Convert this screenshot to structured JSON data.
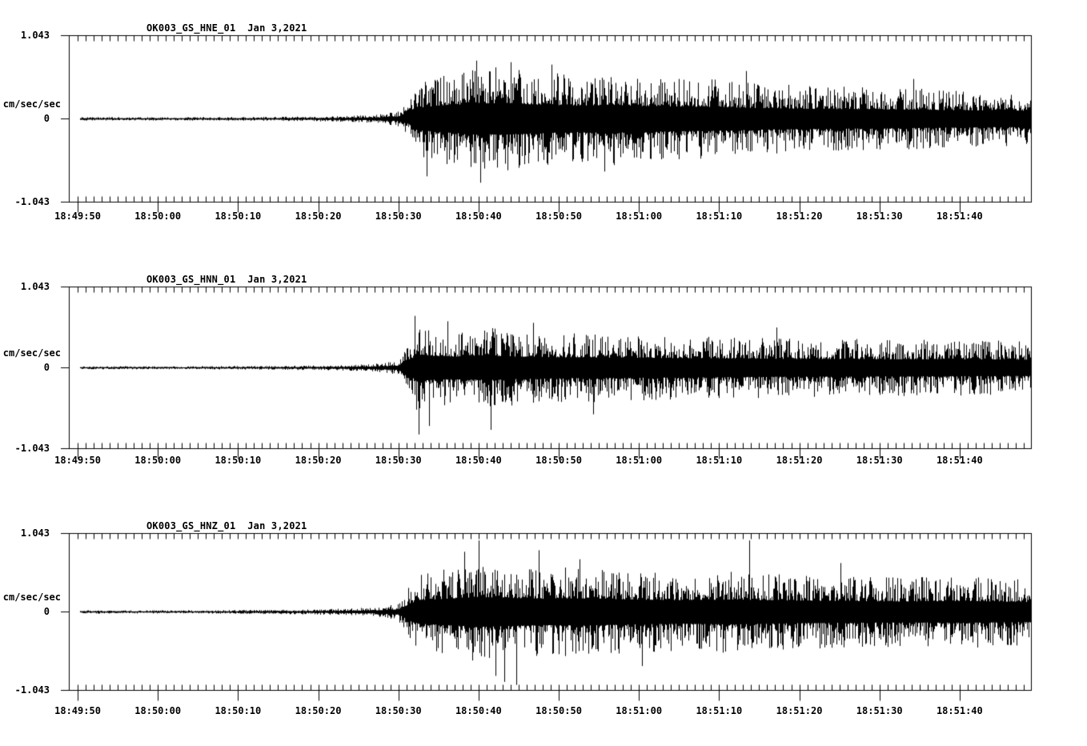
{
  "page": {
    "background": "#ffffff",
    "foreground": "#000000"
  },
  "chart_data": {
    "type": "line",
    "subtype": "seismogram-waveform",
    "station": "OK003",
    "network": "GS",
    "date": "Jan 3,2021",
    "grid": false,
    "x_axis": {
      "window_start": "18:49:49",
      "window_end": "18:51:49",
      "window_seconds": 120,
      "major_tick_interval_sec": 10,
      "minor_tick_interval_sec": 1,
      "tick_labels": [
        "18:49:50",
        "18:50:00",
        "18:50:10",
        "18:50:20",
        "18:50:30",
        "18:50:40",
        "18:50:50",
        "18:51:00",
        "18:51:10",
        "18:51:20",
        "18:51:30",
        "18:51:40"
      ]
    },
    "panels": [
      {
        "id": "HNE",
        "title": "OK003_GS_HNE_01  Jan 3,2021",
        "ylabel": "cm/sec/sec",
        "yticks": [
          "1.043",
          "0",
          "-1.043"
        ],
        "ylim": [
          -1.043,
          1.043
        ],
        "event_onset_sec": 42.3,
        "envelope": [
          [
            1.4,
            0.022
          ],
          [
            15,
            0.022
          ],
          [
            25,
            0.026
          ],
          [
            33,
            0.034
          ],
          [
            38,
            0.05
          ],
          [
            41,
            0.09
          ],
          [
            42.3,
            0.2
          ],
          [
            43.2,
            0.45
          ],
          [
            46,
            0.55
          ],
          [
            50,
            0.62
          ],
          [
            54,
            0.66
          ],
          [
            58,
            0.6
          ],
          [
            63,
            0.55
          ],
          [
            68,
            0.58
          ],
          [
            73,
            0.52
          ],
          [
            80,
            0.5
          ],
          [
            86,
            0.45
          ],
          [
            92,
            0.42
          ],
          [
            100,
            0.4
          ],
          [
            108,
            0.37
          ],
          [
            114,
            0.35
          ],
          [
            120,
            0.34
          ]
        ],
        "peak_spikes": [
          [
            44.6,
            -0.72
          ],
          [
            50.8,
            0.73
          ],
          [
            51.3,
            -0.8
          ],
          [
            55.1,
            0.71
          ],
          [
            60.2,
            0.68
          ],
          [
            66.8,
            -0.66
          ],
          [
            84.5,
            0.6
          ],
          [
            105.3,
            0.5
          ]
        ]
      },
      {
        "id": "HNN",
        "title": "OK003_GS_HNN_01  Jan 3,2021",
        "ylabel": "cm/sec/sec",
        "yticks": [
          "1.043",
          "0",
          "-1.043"
        ],
        "ylim": [
          -1.043,
          1.043
        ],
        "event_onset_sec": 42.4,
        "envelope": [
          [
            1.4,
            0.02
          ],
          [
            15,
            0.02
          ],
          [
            25,
            0.025
          ],
          [
            33,
            0.035
          ],
          [
            38,
            0.05
          ],
          [
            41,
            0.09
          ],
          [
            42.4,
            0.3
          ],
          [
            43.3,
            0.56
          ],
          [
            45,
            0.52
          ],
          [
            48,
            0.48
          ],
          [
            52,
            0.52
          ],
          [
            56,
            0.48
          ],
          [
            61,
            0.45
          ],
          [
            67,
            0.44
          ],
          [
            74,
            0.42
          ],
          [
            82,
            0.4
          ],
          [
            90,
            0.38
          ],
          [
            100,
            0.37
          ],
          [
            110,
            0.36
          ],
          [
            120,
            0.35
          ]
        ],
        "peak_spikes": [
          [
            43.1,
            0.67
          ],
          [
            43.6,
            -0.86
          ],
          [
            44.9,
            -0.75
          ],
          [
            47.2,
            0.6
          ],
          [
            52.6,
            -0.8
          ],
          [
            57.9,
            0.58
          ],
          [
            65.4,
            -0.6
          ],
          [
            88.3,
            0.52
          ]
        ]
      },
      {
        "id": "HNZ",
        "title": "OK003_GS_HNZ_01  Jan 3,2021",
        "ylabel": "cm/sec/sec",
        "yticks": [
          "1.043",
          "0",
          "-1.043"
        ],
        "ylim": [
          -1.043,
          1.043
        ],
        "event_onset_sec": 42.5,
        "envelope": [
          [
            1.4,
            0.022
          ],
          [
            15,
            0.022
          ],
          [
            25,
            0.028
          ],
          [
            33,
            0.04
          ],
          [
            38,
            0.06
          ],
          [
            41,
            0.11
          ],
          [
            42.5,
            0.35
          ],
          [
            43.5,
            0.52
          ],
          [
            47,
            0.58
          ],
          [
            51,
            0.66
          ],
          [
            55,
            0.62
          ],
          [
            59,
            0.58
          ],
          [
            64,
            0.6
          ],
          [
            70,
            0.55
          ],
          [
            76,
            0.52
          ],
          [
            83,
            0.55
          ],
          [
            90,
            0.5
          ],
          [
            97,
            0.48
          ],
          [
            104,
            0.46
          ],
          [
            112,
            0.48
          ],
          [
            120,
            0.44
          ]
        ],
        "peak_spikes": [
          [
            49.3,
            0.8
          ],
          [
            51.1,
            0.95
          ],
          [
            53.2,
            -0.85
          ],
          [
            54.3,
            -0.93
          ],
          [
            55.8,
            -0.97
          ],
          [
            58.6,
            0.82
          ],
          [
            63.7,
            0.7
          ],
          [
            71.5,
            -0.72
          ],
          [
            84.9,
            0.95
          ],
          [
            96.2,
            0.65
          ]
        ]
      }
    ]
  }
}
